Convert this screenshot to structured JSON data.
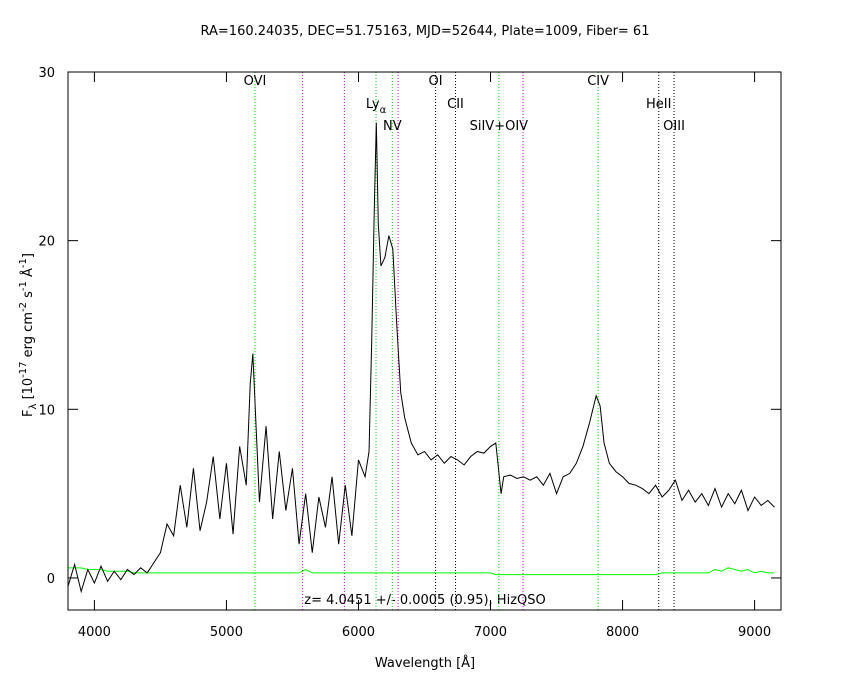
{
  "chart_data": {
    "type": "line",
    "title": "RA=160.24035, DEC=51.75163, MJD=52644, Plate=1009, Fiber= 61",
    "xlabel": "Wavelength [Å]",
    "ylabel_parts": [
      {
        "text": "F",
        "script": "normal"
      },
      {
        "text": "λ",
        "script": "sub"
      },
      {
        "text": " [10",
        "script": "normal"
      },
      {
        "text": "-17",
        "script": "sup"
      },
      {
        "text": " erg cm",
        "script": "normal"
      },
      {
        "text": "-2",
        "script": "sup"
      },
      {
        "text": " s",
        "script": "normal"
      },
      {
        "text": "-1",
        "script": "sup"
      },
      {
        "text": " Å",
        "script": "normal"
      },
      {
        "text": "-1",
        "script": "sup"
      },
      {
        "text": "]",
        "script": "normal"
      }
    ],
    "annotation": "z= 4.0451 +/- 0.0005 (0.95), HizQSO",
    "xlim": [
      3800,
      9200
    ],
    "ylim": [
      -1.9,
      30
    ],
    "xticks": [
      4000,
      5000,
      6000,
      7000,
      8000,
      9000
    ],
    "yticks": [
      0,
      10,
      20,
      30
    ],
    "x": [
      3800,
      3850,
      3900,
      3950,
      4000,
      4050,
      4100,
      4150,
      4200,
      4250,
      4300,
      4350,
      4400,
      4450,
      4500,
      4550,
      4600,
      4650,
      4700,
      4750,
      4800,
      4850,
      4900,
      4950,
      5000,
      5050,
      5100,
      5150,
      5180,
      5200,
      5230,
      5250,
      5300,
      5350,
      5400,
      5450,
      5500,
      5550,
      5600,
      5650,
      5700,
      5750,
      5800,
      5850,
      5900,
      5950,
      6000,
      6050,
      6080,
      6100,
      6120,
      6135,
      6150,
      6170,
      6200,
      6230,
      6260,
      6290,
      6320,
      6350,
      6400,
      6450,
      6500,
      6550,
      6600,
      6650,
      6700,
      6750,
      6800,
      6850,
      6900,
      6950,
      7000,
      7040,
      7060,
      7080,
      7100,
      7150,
      7200,
      7250,
      7300,
      7350,
      7400,
      7450,
      7500,
      7550,
      7600,
      7650,
      7700,
      7750,
      7800,
      7830,
      7860,
      7900,
      7950,
      8000,
      8050,
      8100,
      8150,
      8200,
      8250,
      8300,
      8350,
      8400,
      8450,
      8500,
      8550,
      8600,
      8650,
      8700,
      8750,
      8800,
      8850,
      8900,
      8950,
      9000,
      9050,
      9100,
      9150
    ],
    "series": [
      {
        "name": "flux",
        "color": "#000000",
        "values": [
          -0.5,
          0.8,
          -0.8,
          0.5,
          -0.3,
          0.7,
          -0.2,
          0.4,
          -0.1,
          0.5,
          0.2,
          0.6,
          0.3,
          0.9,
          1.5,
          3.2,
          2.5,
          5.5,
          3.0,
          6.5,
          2.8,
          4.5,
          7.2,
          3.5,
          6.8,
          2.6,
          7.8,
          5.5,
          11.5,
          13.3,
          8.0,
          4.5,
          9.0,
          3.5,
          7.5,
          4.0,
          6.5,
          2.0,
          5.0,
          1.5,
          4.8,
          3.0,
          6.0,
          2.0,
          5.5,
          2.5,
          7.0,
          6.0,
          7.5,
          14.0,
          22.0,
          27.0,
          21.0,
          18.5,
          19.0,
          20.3,
          19.5,
          15.0,
          11.0,
          9.5,
          8.0,
          7.3,
          7.5,
          7.0,
          7.3,
          6.8,
          7.2,
          7.0,
          6.7,
          7.2,
          7.5,
          7.4,
          7.8,
          8.0,
          6.5,
          5.0,
          6.0,
          6.1,
          5.9,
          6.0,
          5.8,
          6.0,
          5.5,
          6.2,
          5.0,
          6.0,
          6.2,
          6.8,
          7.8,
          9.2,
          10.8,
          10.2,
          8.0,
          6.8,
          6.3,
          6.0,
          5.6,
          5.5,
          5.3,
          5.0,
          5.5,
          4.8,
          5.2,
          5.8,
          4.6,
          5.2,
          4.5,
          5.0,
          4.3,
          5.3,
          4.2,
          5.0,
          4.4,
          5.2,
          4.0,
          4.8,
          4.3,
          4.6,
          4.2
        ]
      },
      {
        "name": "error",
        "color": "#00ff00",
        "values": [
          0.6,
          0.6,
          0.6,
          0.5,
          0.5,
          0.5,
          0.4,
          0.4,
          0.4,
          0.4,
          0.3,
          0.3,
          0.3,
          0.3,
          0.3,
          0.3,
          0.3,
          0.3,
          0.3,
          0.3,
          0.3,
          0.3,
          0.3,
          0.3,
          0.3,
          0.3,
          0.3,
          0.3,
          0.3,
          0.3,
          0.3,
          0.3,
          0.3,
          0.3,
          0.3,
          0.3,
          0.3,
          0.3,
          0.5,
          0.3,
          0.3,
          0.3,
          0.3,
          0.3,
          0.3,
          0.3,
          0.3,
          0.3,
          0.3,
          0.3,
          0.3,
          0.3,
          0.3,
          0.3,
          0.3,
          0.3,
          0.3,
          0.3,
          0.3,
          0.3,
          0.3,
          0.3,
          0.3,
          0.3,
          0.3,
          0.3,
          0.3,
          0.3,
          0.3,
          0.3,
          0.3,
          0.3,
          0.3,
          0.2,
          0.2,
          0.2,
          0.2,
          0.2,
          0.2,
          0.2,
          0.2,
          0.2,
          0.2,
          0.2,
          0.2,
          0.2,
          0.2,
          0.2,
          0.2,
          0.2,
          0.2,
          0.2,
          0.2,
          0.2,
          0.2,
          0.2,
          0.2,
          0.2,
          0.2,
          0.2,
          0.2,
          0.3,
          0.3,
          0.3,
          0.3,
          0.3,
          0.3,
          0.3,
          0.3,
          0.5,
          0.4,
          0.6,
          0.5,
          0.4,
          0.5,
          0.3,
          0.4,
          0.3,
          0.3
        ]
      }
    ],
    "lines": [
      {
        "wavelength": 5216,
        "label": "OVI",
        "color": "#00dd00"
      },
      {
        "wavelength": 6133,
        "label": "Ly",
        "sub": "α",
        "color": "#00dd00"
      },
      {
        "wavelength": 6256,
        "label": "NV",
        "color": "#00dd00"
      },
      {
        "wavelength": 6584,
        "label": "OI",
        "color": "#000000"
      },
      {
        "wavelength": 6735,
        "label": "CII",
        "color": "#000000"
      },
      {
        "wavelength": 7063,
        "label": "SiIV+OIV",
        "color": "#00dd00"
      },
      {
        "wavelength": 7815,
        "label": "CIV",
        "color": "#00dd00"
      },
      {
        "wavelength": 8274,
        "label": "HeII",
        "color": "#000000"
      },
      {
        "wavelength": 8390,
        "label": "OIII",
        "color": "#000000"
      }
    ],
    "sky_lines": [
      5577,
      5893,
      6300,
      7246
    ],
    "sky_color": "#cc00cc"
  }
}
